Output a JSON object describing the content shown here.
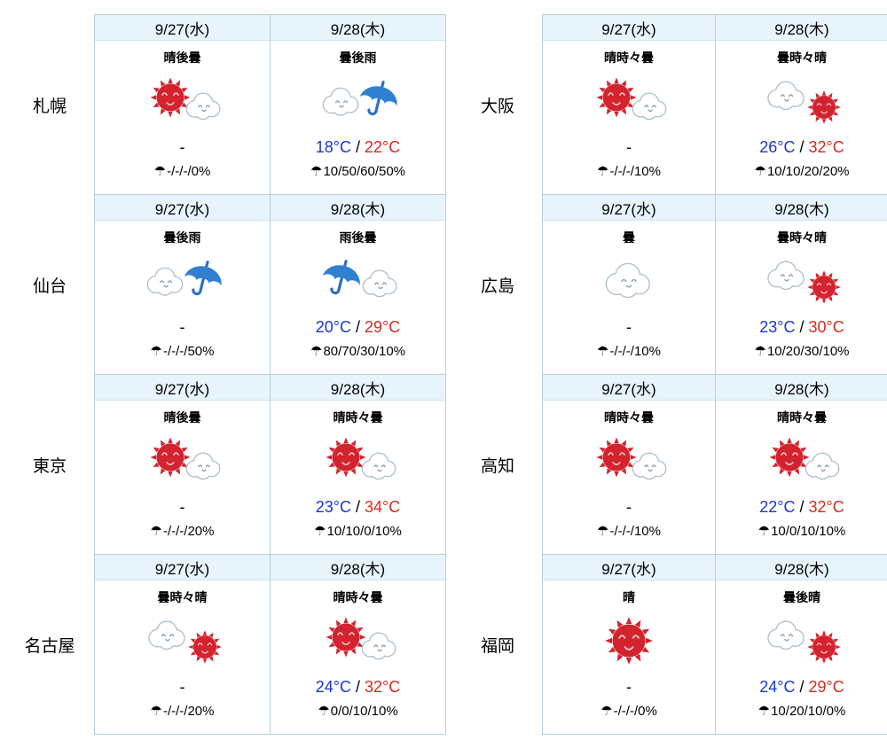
{
  "icons": {
    "umbrella": "☂"
  },
  "colors": {
    "temp_low": "#1a35d4",
    "temp_high": "#d42a1e",
    "header_bg": "#e7f4fb",
    "table_border": "#b6cfde",
    "sun_red": "#d2232e",
    "umbrella_blue": "#2f80d0"
  },
  "cities": [
    {
      "name": "札幌",
      "days": [
        {
          "date": "9/27(水)",
          "desc": "晴後曇",
          "icon": "sun-cloud",
          "temp_low": "",
          "temp_sep": "-",
          "temp_high": "",
          "precip": "-/-/-/0%"
        },
        {
          "date": "9/28(木)",
          "desc": "曇後雨",
          "icon": "cloud-umbrella",
          "temp_low": "18°C",
          "temp_sep": " / ",
          "temp_high": "22°C",
          "precip": "10/50/60/50%"
        }
      ]
    },
    {
      "name": "仙台",
      "days": [
        {
          "date": "9/27(水)",
          "desc": "曇後雨",
          "icon": "cloud-umbrella",
          "temp_low": "",
          "temp_sep": "-",
          "temp_high": "",
          "precip": "-/-/-/50%"
        },
        {
          "date": "9/28(木)",
          "desc": "雨後曇",
          "icon": "umbrella-cloud",
          "temp_low": "20°C",
          "temp_sep": " / ",
          "temp_high": "29°C",
          "precip": "80/70/30/10%"
        }
      ]
    },
    {
      "name": "東京",
      "days": [
        {
          "date": "9/27(水)",
          "desc": "晴後曇",
          "icon": "sun-cloud",
          "temp_low": "",
          "temp_sep": "-",
          "temp_high": "",
          "precip": "-/-/-/20%"
        },
        {
          "date": "9/28(木)",
          "desc": "晴時々曇",
          "icon": "sun-cloud",
          "temp_low": "23°C",
          "temp_sep": " / ",
          "temp_high": "34°C",
          "precip": "10/10/0/10%"
        }
      ]
    },
    {
      "name": "名古屋",
      "days": [
        {
          "date": "9/27(水)",
          "desc": "曇時々晴",
          "icon": "cloud-sun",
          "temp_low": "",
          "temp_sep": "-",
          "temp_high": "",
          "precip": "-/-/-/20%"
        },
        {
          "date": "9/28(木)",
          "desc": "晴時々曇",
          "icon": "sun-cloud",
          "temp_low": "24°C",
          "temp_sep": " / ",
          "temp_high": "32°C",
          "precip": "0/0/10/10%"
        }
      ]
    },
    {
      "name": "大阪",
      "days": [
        {
          "date": "9/27(水)",
          "desc": "晴時々曇",
          "icon": "sun-cloud",
          "temp_low": "",
          "temp_sep": "-",
          "temp_high": "",
          "precip": "-/-/-/10%"
        },
        {
          "date": "9/28(木)",
          "desc": "曇時々晴",
          "icon": "cloud-sun",
          "temp_low": "26°C",
          "temp_sep": " / ",
          "temp_high": "32°C",
          "precip": "10/10/20/20%"
        }
      ]
    },
    {
      "name": "広島",
      "days": [
        {
          "date": "9/27(水)",
          "desc": "曇",
          "icon": "cloud",
          "temp_low": "",
          "temp_sep": "-",
          "temp_high": "",
          "precip": "-/-/-/10%"
        },
        {
          "date": "9/28(木)",
          "desc": "曇時々晴",
          "icon": "cloud-sun",
          "temp_low": "23°C",
          "temp_sep": " / ",
          "temp_high": "30°C",
          "precip": "10/20/30/10%"
        }
      ]
    },
    {
      "name": "高知",
      "days": [
        {
          "date": "9/27(水)",
          "desc": "晴時々曇",
          "icon": "sun-cloud",
          "temp_low": "",
          "temp_sep": "-",
          "temp_high": "",
          "precip": "-/-/-/10%"
        },
        {
          "date": "9/28(木)",
          "desc": "晴時々曇",
          "icon": "sun-cloud",
          "temp_low": "22°C",
          "temp_sep": " / ",
          "temp_high": "32°C",
          "precip": "10/0/10/10%"
        }
      ]
    },
    {
      "name": "福岡",
      "days": [
        {
          "date": "9/27(水)",
          "desc": "晴",
          "icon": "sun",
          "temp_low": "",
          "temp_sep": "-",
          "temp_high": "",
          "precip": "-/-/-/0%"
        },
        {
          "date": "9/28(木)",
          "desc": "曇後晴",
          "icon": "cloud-sun",
          "temp_low": "24°C",
          "temp_sep": " / ",
          "temp_high": "29°C",
          "precip": "10/20/10/0%"
        }
      ]
    }
  ]
}
